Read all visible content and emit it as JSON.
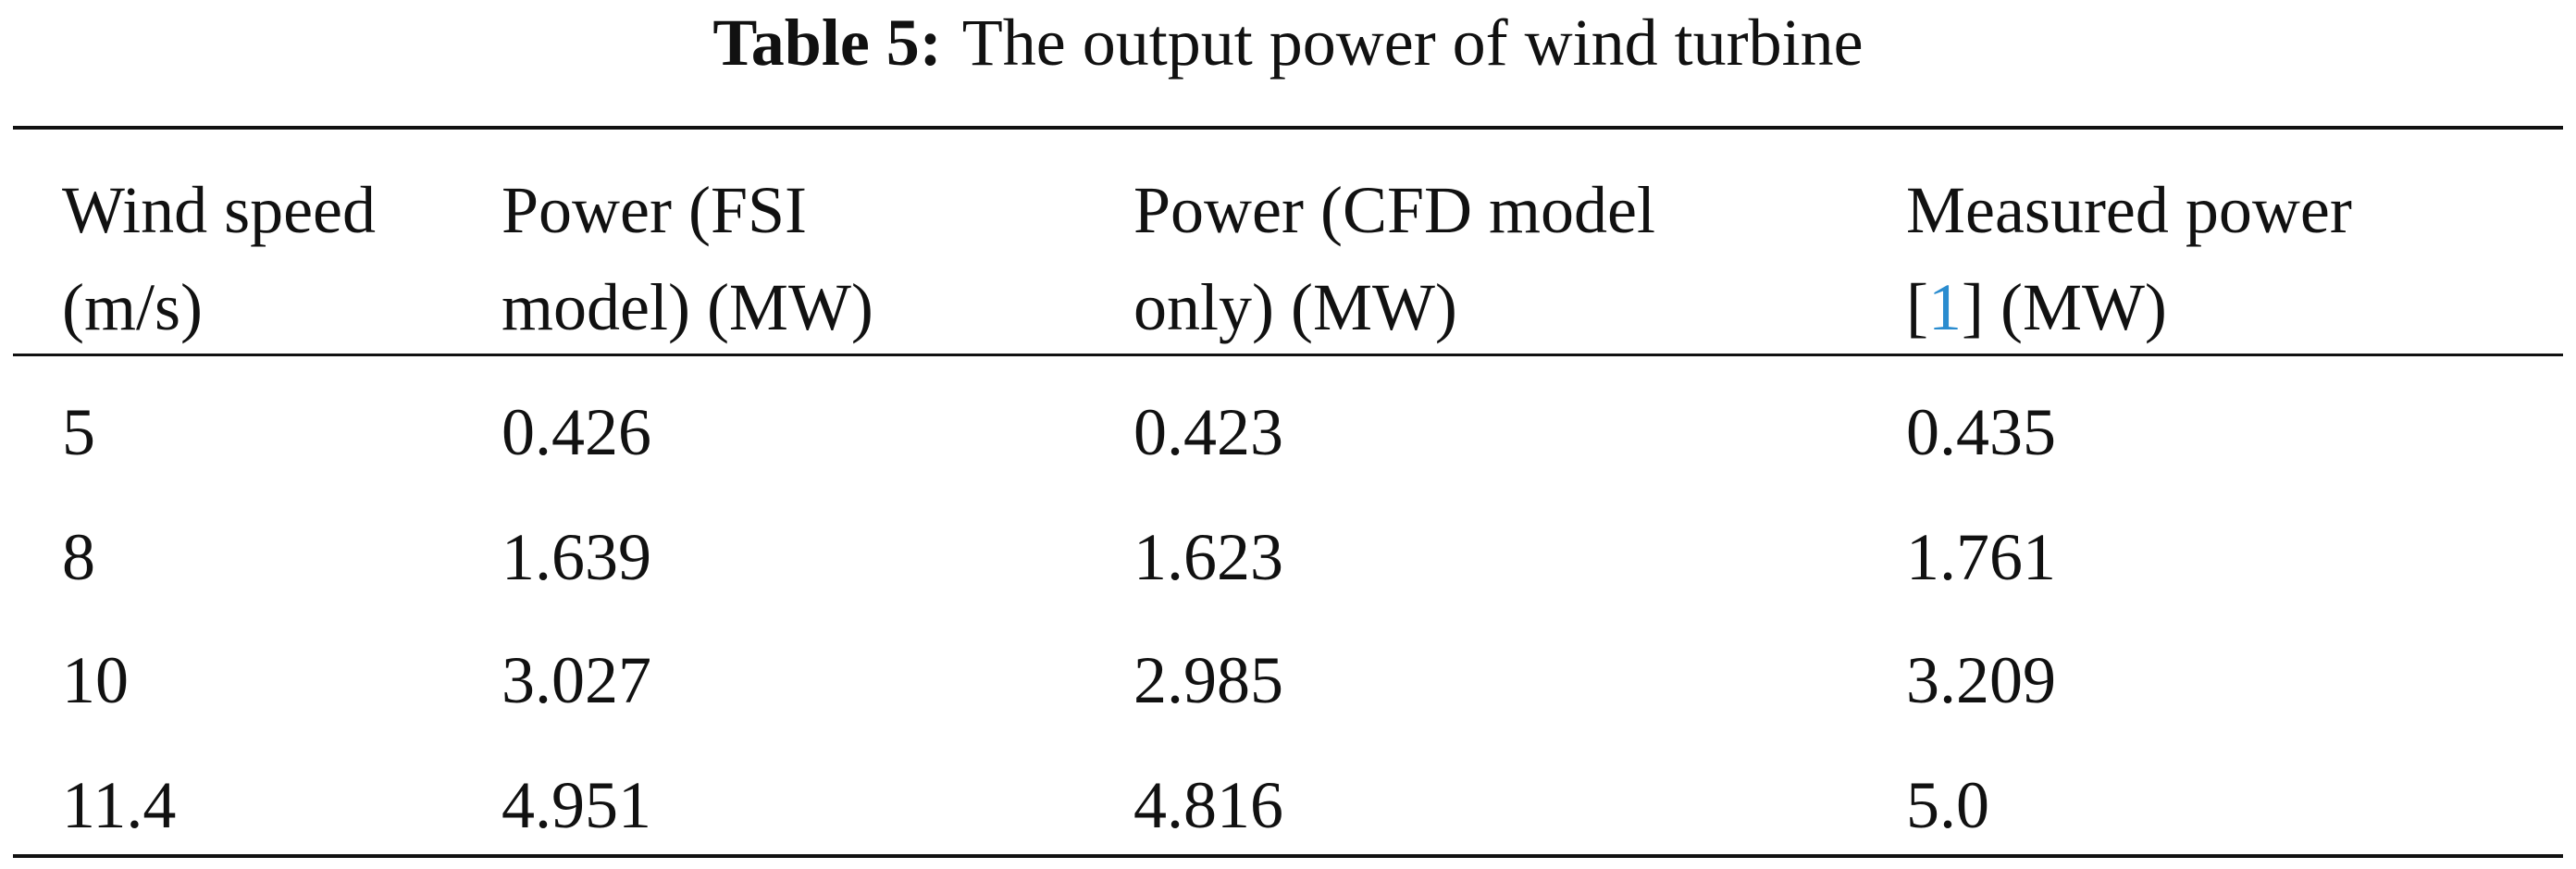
{
  "caption": {
    "label": "Table 5:",
    "text": "The output power of wind turbine"
  },
  "table": {
    "headers": [
      {
        "lines": [
          "Wind speed",
          "(m/s)"
        ]
      },
      {
        "lines": [
          "Power (FSI",
          "model) (MW)"
        ]
      },
      {
        "lines": [
          "Power (CFD model",
          "only) (MW)"
        ]
      },
      {
        "lines": [
          "Measured power"
        ],
        "citation_open": "[",
        "citation": "1",
        "citation_close": "]",
        "unit": "(MW)"
      }
    ],
    "rows": [
      [
        "5",
        "0.426",
        "0.423",
        "0.435"
      ],
      [
        "8",
        "1.639",
        "1.623",
        "1.761"
      ],
      [
        "10",
        "3.027",
        "2.985",
        "3.209"
      ],
      [
        "11.4",
        "4.951",
        "4.816",
        "5.0"
      ]
    ]
  }
}
